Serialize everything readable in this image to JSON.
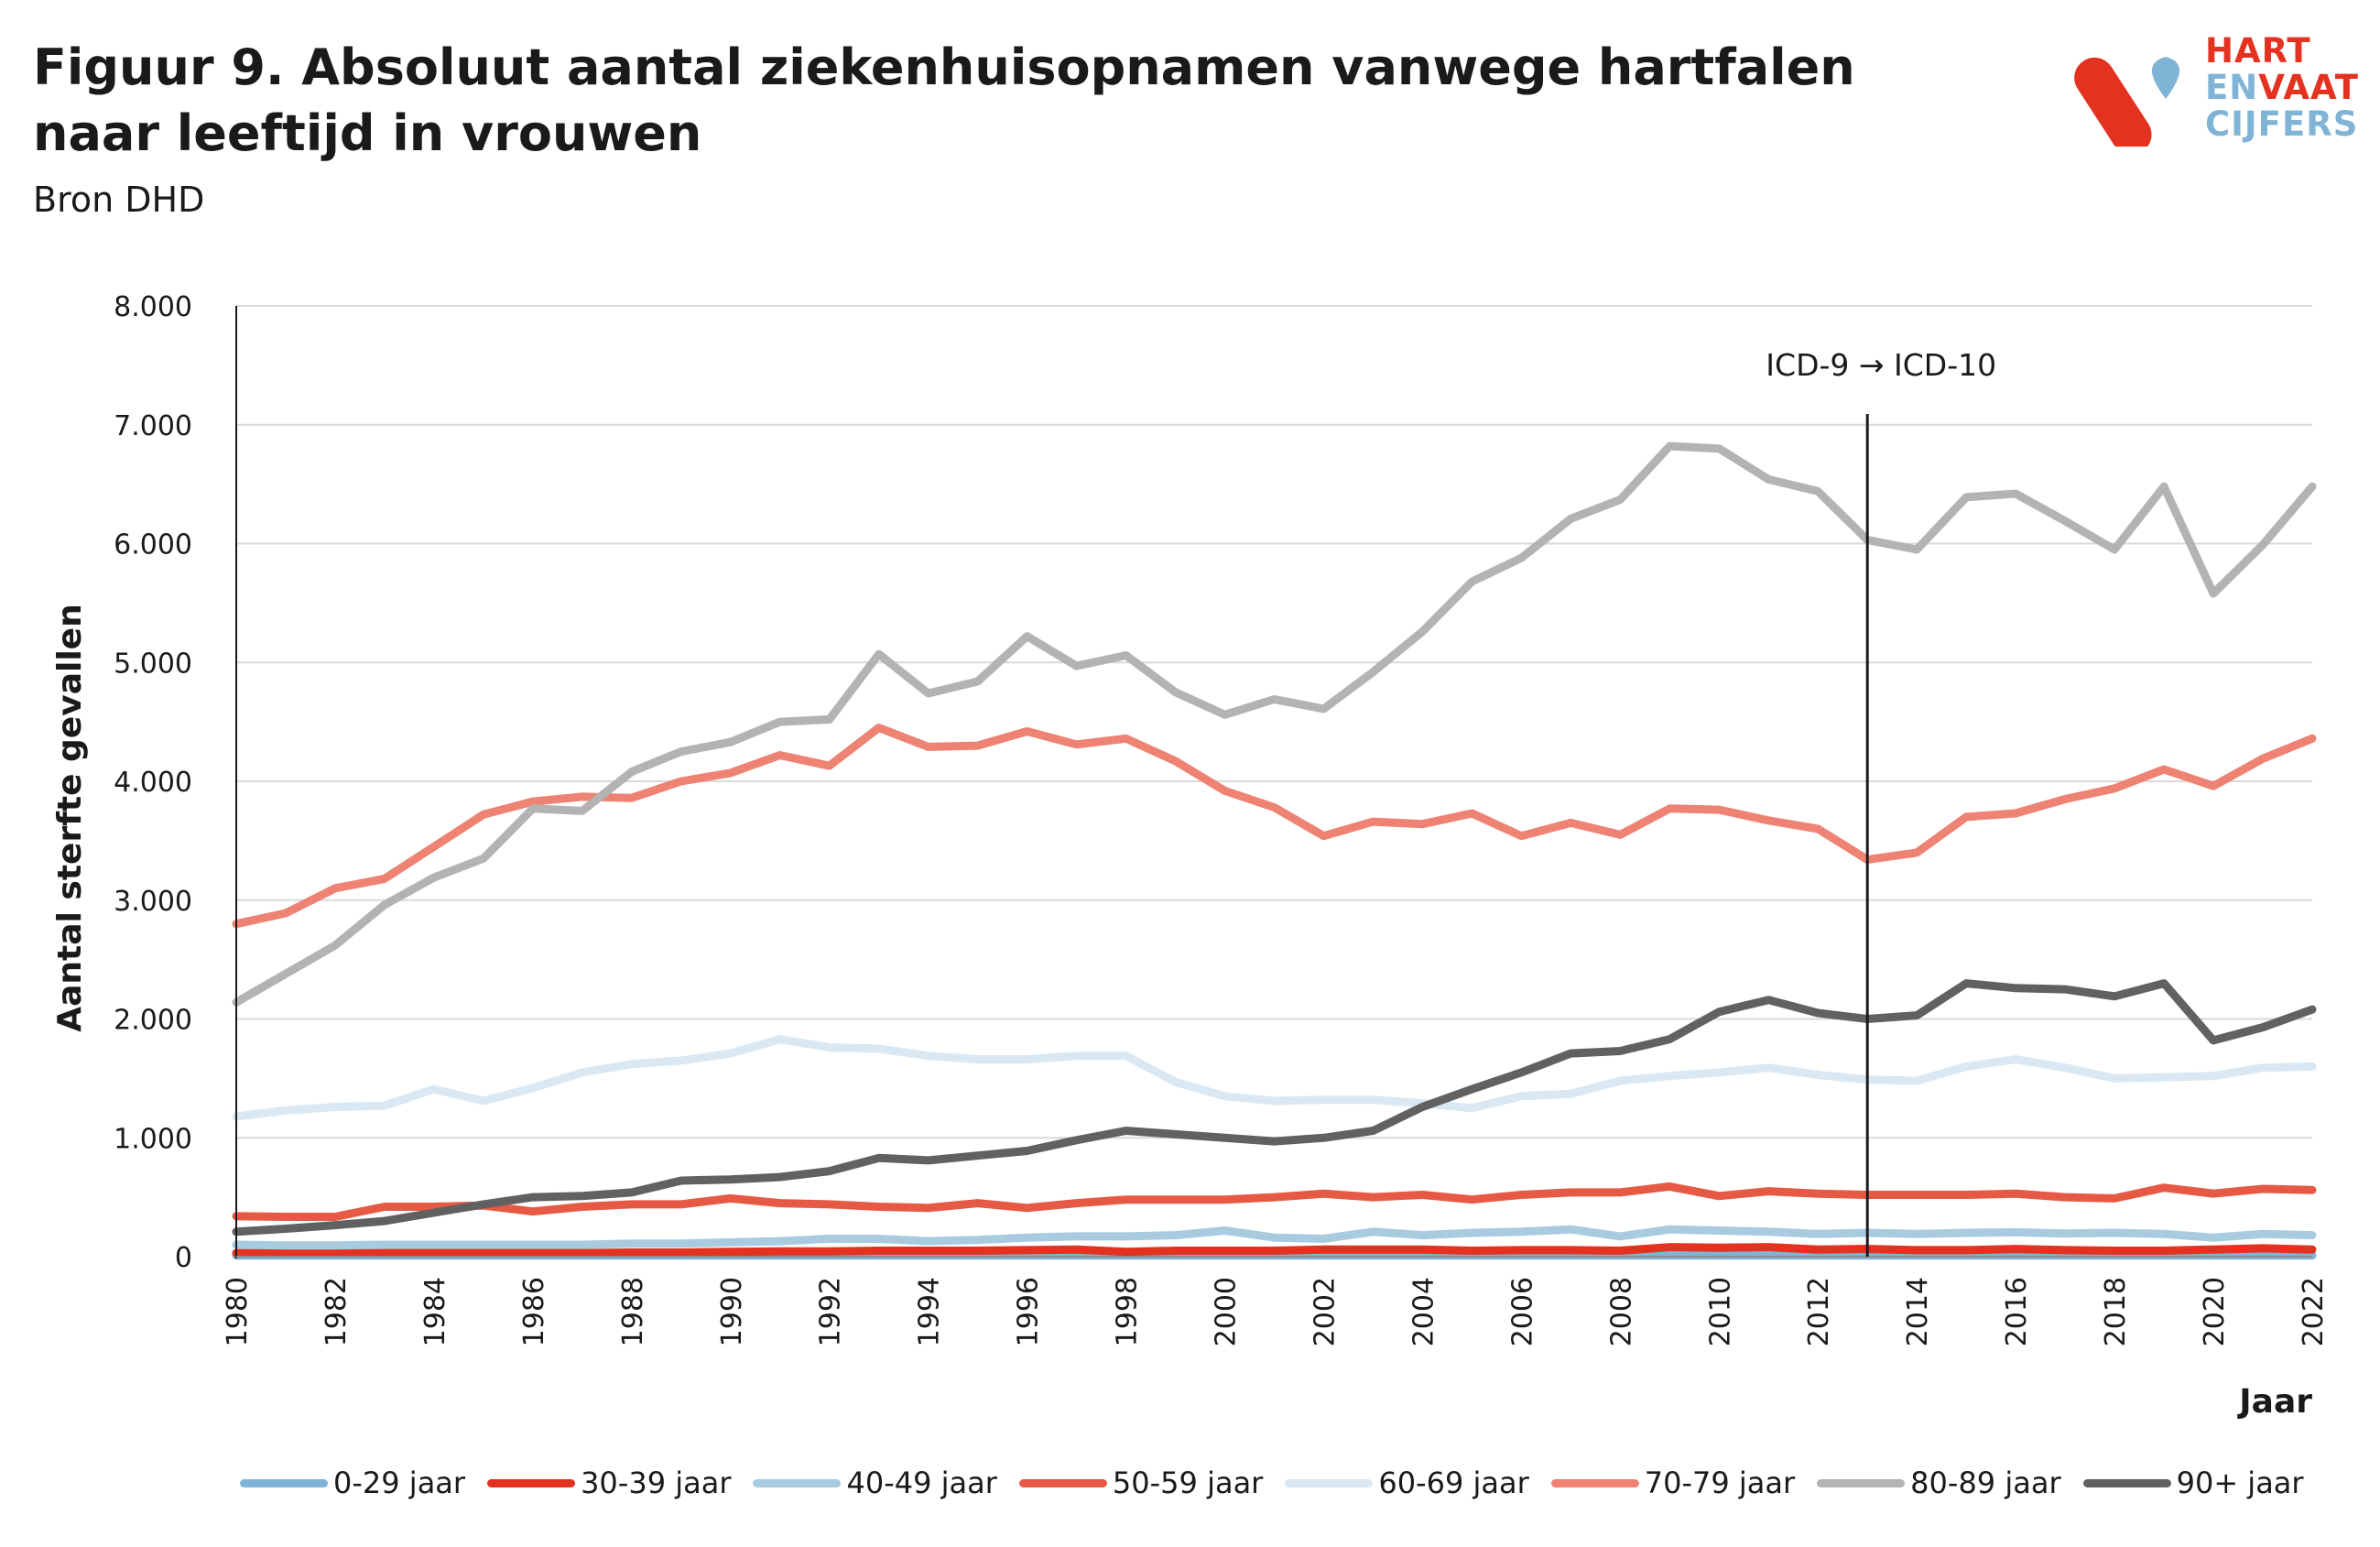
{
  "header": {
    "title": "Figuur 9. Absoluut aantal ziekenhuisopnamen vanwege hartfalen naar leeftijd in vrouwen",
    "subtitle": "Bron DHD"
  },
  "logo": {
    "line1": "HART",
    "line2a": "EN",
    "line2b": "VAAT",
    "line3": "CIJFERS",
    "colors": {
      "red": "#e3321f",
      "blue": "#7fb4d6"
    }
  },
  "chart_data": {
    "type": "line",
    "title": "",
    "xlabel": "Jaar",
    "ylabel": "Aantal sterfte gevallen",
    "ylim": [
      0,
      8000
    ],
    "yticks": [
      0,
      1000,
      2000,
      3000,
      4000,
      5000,
      6000,
      7000,
      8000
    ],
    "ytick_labels": [
      "0",
      "1.000",
      "2.000",
      "3.000",
      "4.000",
      "5.000",
      "6.000",
      "7.000",
      "8.000"
    ],
    "xlim": [
      1980,
      2022
    ],
    "xticks": [
      1980,
      1982,
      1984,
      1986,
      1988,
      1990,
      1992,
      1994,
      1996,
      1998,
      2000,
      2002,
      2004,
      2006,
      2008,
      2010,
      2012,
      2014,
      2016,
      2018,
      2020,
      2022
    ],
    "xtick_labels": [
      "1980",
      "1982",
      "1984",
      "1986",
      "1988",
      "1990",
      "1992",
      "1994",
      "1996",
      "1998",
      "2000",
      "2002",
      "2004",
      "2006",
      "2008",
      "2010",
      "2012",
      "2014",
      "2016",
      "2018",
      "2020",
      "2022"
    ],
    "grid": "horizontal",
    "legend_position": "bottom",
    "annotation": {
      "text": "ICD-9 → ICD-10",
      "x": 2013
    },
    "x": [
      1980,
      1981,
      1982,
      1983,
      1984,
      1985,
      1986,
      1987,
      1988,
      1989,
      1990,
      1991,
      1992,
      1993,
      1994,
      1995,
      1996,
      1997,
      1998,
      1999,
      2000,
      2001,
      2002,
      2003,
      2004,
      2005,
      2006,
      2007,
      2008,
      2009,
      2010,
      2011,
      2012,
      2013,
      2014,
      2015,
      2016,
      2017,
      2018,
      2019,
      2020,
      2021,
      2022
    ],
    "series": [
      {
        "name": "0-29 jaar",
        "color": "#7fb4d6",
        "values": [
          10,
          10,
          10,
          10,
          10,
          10,
          10,
          10,
          10,
          10,
          10,
          10,
          10,
          10,
          10,
          10,
          10,
          10,
          10,
          10,
          10,
          10,
          10,
          10,
          10,
          10,
          10,
          10,
          10,
          10,
          10,
          10,
          10,
          10,
          10,
          10,
          10,
          10,
          10,
          10,
          10,
          10,
          10
        ]
      },
      {
        "name": "30-39 jaar",
        "color": "#e3321f",
        "values": [
          30,
          30,
          30,
          30,
          30,
          30,
          30,
          30,
          35,
          35,
          40,
          45,
          45,
          50,
          50,
          50,
          55,
          60,
          40,
          50,
          50,
          50,
          60,
          60,
          60,
          50,
          55,
          55,
          50,
          80,
          75,
          80,
          60,
          65,
          55,
          55,
          65,
          55,
          50,
          50,
          60,
          70,
          60
        ]
      },
      {
        "name": "40-49 jaar",
        "color": "#a9cbe0",
        "values": [
          100,
          95,
          95,
          100,
          100,
          100,
          100,
          100,
          110,
          110,
          120,
          130,
          150,
          150,
          130,
          140,
          160,
          170,
          170,
          180,
          220,
          160,
          150,
          210,
          180,
          200,
          210,
          230,
          170,
          230,
          220,
          210,
          190,
          200,
          190,
          200,
          205,
          195,
          200,
          190,
          160,
          190,
          180
        ]
      },
      {
        "name": "50-59 jaar",
        "color": "#e65a45",
        "values": [
          340,
          335,
          335,
          420,
          420,
          430,
          380,
          420,
          440,
          440,
          490,
          450,
          440,
          420,
          410,
          450,
          410,
          450,
          480,
          480,
          480,
          500,
          530,
          500,
          520,
          480,
          520,
          540,
          540,
          590,
          510,
          550,
          530,
          520,
          520,
          520,
          530,
          500,
          490,
          580,
          530,
          570,
          560
        ]
      },
      {
        "name": "60-69 jaar",
        "color": "#d9e8f2",
        "values": [
          1180,
          1230,
          1260,
          1270,
          1410,
          1310,
          1420,
          1550,
          1620,
          1650,
          1710,
          1830,
          1760,
          1750,
          1690,
          1660,
          1660,
          1690,
          1690,
          1470,
          1350,
          1310,
          1320,
          1320,
          1290,
          1250,
          1350,
          1370,
          1480,
          1520,
          1550,
          1590,
          1530,
          1490,
          1480,
          1600,
          1660,
          1590,
          1500,
          1510,
          1520,
          1590,
          1600
        ]
      },
      {
        "name": "70-79 jaar",
        "color": "#ee8273",
        "values": [
          2800,
          2890,
          3100,
          3180,
          3450,
          3720,
          3830,
          3870,
          3860,
          4000,
          4070,
          4220,
          4130,
          4450,
          4290,
          4300,
          4420,
          4310,
          4360,
          4170,
          3920,
          3780,
          3540,
          3660,
          3640,
          3730,
          3540,
          3650,
          3550,
          3770,
          3760,
          3670,
          3600,
          3340,
          3400,
          3700,
          3730,
          3850,
          3940,
          4100,
          3960,
          4190,
          4360
        ]
      },
      {
        "name": "80-89 jaar",
        "color": "#b3b3b3",
        "values": [
          2140,
          2380,
          2620,
          2960,
          3190,
          3350,
          3770,
          3750,
          4080,
          4250,
          4330,
          4500,
          4520,
          5070,
          4740,
          4840,
          5220,
          4970,
          5060,
          4750,
          4560,
          4690,
          4610,
          4920,
          5260,
          5680,
          5880,
          6210,
          6370,
          6820,
          6800,
          6540,
          6440,
          6030,
          5950,
          6390,
          6420,
          6190,
          5950,
          6480,
          5580,
          5990,
          6480
        ]
      },
      {
        "name": "90+ jaar",
        "color": "#616161",
        "values": [
          210,
          235,
          265,
          300,
          370,
          440,
          500,
          510,
          540,
          640,
          650,
          670,
          720,
          830,
          810,
          850,
          890,
          980,
          1060,
          1030,
          1000,
          970,
          1000,
          1060,
          1260,
          1410,
          1550,
          1710,
          1730,
          1830,
          2060,
          2160,
          2050,
          2000,
          2030,
          2300,
          2260,
          2250,
          2190,
          2300,
          1820,
          1930,
          2080
        ]
      }
    ]
  }
}
